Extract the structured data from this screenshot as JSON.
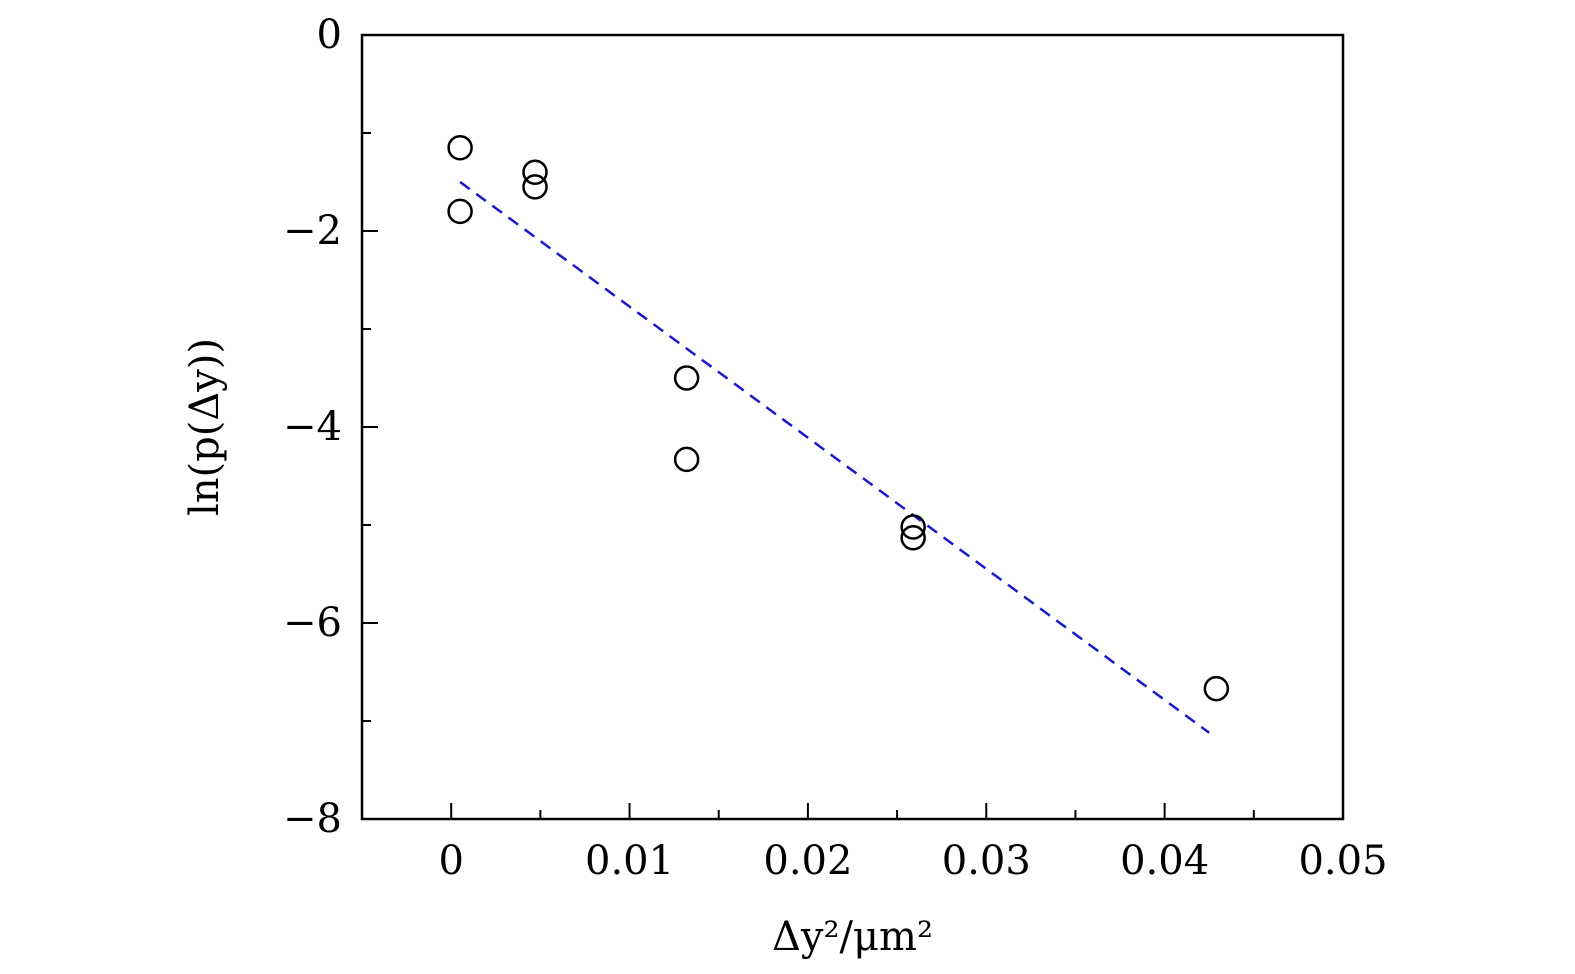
{
  "chart_data": {
    "type": "scatter",
    "xlabel": "Δy²/μm²",
    "ylabel": "ln(p(Δy))",
    "xlim": [
      -0.005,
      0.05
    ],
    "ylim": [
      -8,
      0
    ],
    "x_ticks": [
      0,
      0.01,
      0.02,
      0.03,
      0.04,
      0.05
    ],
    "x_tick_labels": [
      "0",
      "0.01",
      "0.02",
      "0.03",
      "0.04",
      "0.05"
    ],
    "x_minor_ticks": [
      0.005,
      0.015,
      0.025,
      0.035,
      0.045
    ],
    "y_ticks": [
      0,
      -2,
      -4,
      -6,
      -8
    ],
    "y_tick_labels": [
      "0",
      "−2",
      "−4",
      "−6",
      "−8"
    ],
    "y_minor_ticks": [
      -1,
      -3,
      -5,
      -7
    ],
    "series": [
      {
        "marker": "open-circle",
        "color": "#000000",
        "points": [
          [
            0.0005,
            -1.15
          ],
          [
            0.0005,
            -1.8
          ],
          [
            0.0047,
            -1.4
          ],
          [
            0.0047,
            -1.55
          ],
          [
            0.0132,
            -3.5
          ],
          [
            0.0132,
            -4.33
          ],
          [
            0.0259,
            -5.02
          ],
          [
            0.0259,
            -5.13
          ],
          [
            0.0429,
            -6.67
          ]
        ]
      },
      {
        "style": "dashed-line",
        "color": "#1a1acc",
        "x": [
          0.0005,
          0.0425
        ],
        "y": [
          -1.5,
          -7.12
        ]
      }
    ],
    "grid": false,
    "legend": "none"
  }
}
